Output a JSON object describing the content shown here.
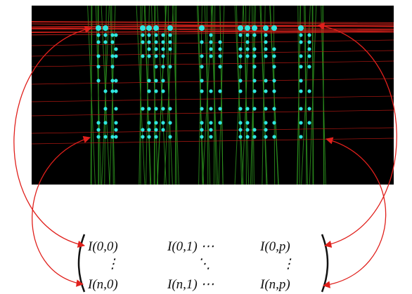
{
  "matrix": {
    "rows": [
      [
        "I(0,0)",
        "I(0,1) ⋯",
        "I(0,p)"
      ],
      [
        "⋮",
        "⋱",
        "⋮"
      ],
      [
        "I(n,0)",
        "I(n,1) ⋯",
        "I(n,p)"
      ]
    ]
  }
}
